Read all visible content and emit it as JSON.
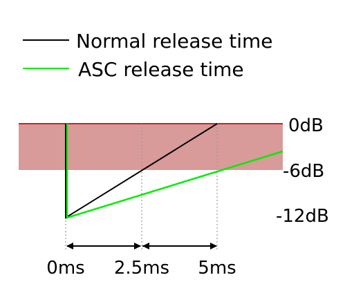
{
  "legend": {
    "normal": {
      "label": "Normal release time",
      "color": "#000000"
    },
    "asc": {
      "label": "ASC release time",
      "color": "#00ee00"
    }
  },
  "levels": {
    "top": "0dB",
    "mid": "-6dB",
    "bottom": "-12dB"
  },
  "times": {
    "start": "0ms",
    "mid": "2.5ms",
    "end": "5ms"
  },
  "colors": {
    "band_fill": "#d99a9a",
    "band_edge": "#cc2222",
    "guide_lines": "#999999",
    "arrows": "#000000"
  }
}
